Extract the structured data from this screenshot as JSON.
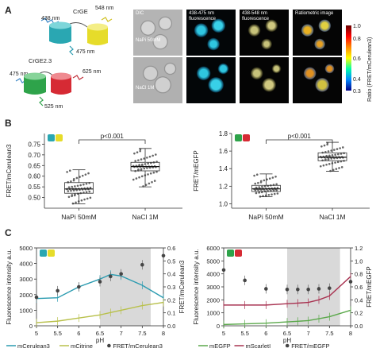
{
  "panels": {
    "a": "A",
    "b": "B",
    "c": "C"
  },
  "sensors": {
    "crge": {
      "name": "CrGE",
      "ex": "438 nm",
      "em1": "475 nm",
      "em2": "548 nm"
    },
    "crge23": {
      "name": "CrGE2.3",
      "ex": "475 nm",
      "em1": "525 nm",
      "em2": "625 nm"
    }
  },
  "micro": {
    "col_labels": [
      "DIC",
      "438-475 nm fluorescence",
      "438-548 nm fluorescence",
      "Ratiometric image"
    ],
    "row_labels": [
      "NaPi 50mM",
      "NaCl 1M"
    ]
  },
  "colorbar": {
    "ticks": [
      "1.0",
      "0.8",
      "0.6",
      "0.4",
      "0.3"
    ],
    "label": "Ratio (FRET/mCerulean3)"
  },
  "chart_data": [
    {
      "type": "box",
      "ylabel": "FRET/mCerulean3",
      "categories": [
        "NaPi 50mM",
        "NaCl 1M"
      ],
      "ylim": [
        0.45,
        0.8
      ],
      "yticks": [
        0.5,
        0.55,
        0.6,
        0.65,
        0.7,
        0.75
      ],
      "boxes": [
        {
          "min": 0.47,
          "q1": 0.52,
          "median": 0.54,
          "q3": 0.57,
          "max": 0.63
        },
        {
          "min": 0.55,
          "q1": 0.625,
          "median": 0.645,
          "q3": 0.665,
          "max": 0.73
        }
      ],
      "annotation": "p<0.001"
    },
    {
      "type": "box",
      "ylabel": "FRET/mEGFP",
      "categories": [
        "NaPi 50mM",
        "NaCl 1M"
      ],
      "ylim": [
        0.95,
        1.8
      ],
      "yticks": [
        1.0,
        1.2,
        1.4,
        1.6,
        1.8
      ],
      "boxes": [
        {
          "min": 1.08,
          "q1": 1.14,
          "median": 1.17,
          "q3": 1.21,
          "max": 1.34
        },
        {
          "min": 1.37,
          "q1": 1.49,
          "median": 1.53,
          "q3": 1.58,
          "max": 1.7
        }
      ],
      "annotation": "p<0.001"
    },
    {
      "type": "line",
      "xlabel": "pH",
      "ylabel": "Fluorescence intensity a.u.",
      "y2label": "FRET/mCerulean3",
      "x": [
        5,
        5.5,
        6,
        6.5,
        6.75,
        7,
        7.5,
        8
      ],
      "xlim": [
        5,
        8
      ],
      "xticks": [
        5,
        5.5,
        6,
        6.5,
        7,
        7.5,
        8
      ],
      "ylim": [
        0,
        5000
      ],
      "yticks": [
        0,
        1000,
        2000,
        3000,
        4000,
        5000
      ],
      "y2lim": [
        0,
        0.6
      ],
      "y2ticks": [
        0,
        0.1,
        0.2,
        0.3,
        0.4,
        0.5,
        0.6
      ],
      "shaded_x": [
        6.5,
        7.7
      ],
      "series": [
        {
          "name": "mCerulean3",
          "axis": "left",
          "color": "#2a9bb0",
          "values": [
            1750,
            1800,
            2500,
            3000,
            3300,
            3200,
            2600,
            1800
          ]
        },
        {
          "name": "mCitrine",
          "axis": "left",
          "color": "#b8c04a",
          "values": [
            200,
            300,
            500,
            700,
            850,
            1000,
            1300,
            1500
          ]
        },
        {
          "name": "FRET/mCerulean3",
          "axis": "right",
          "color": "#555555",
          "values": [
            0.22,
            0.27,
            0.3,
            0.34,
            0.38,
            0.4,
            0.47,
            0.54
          ]
        }
      ]
    },
    {
      "type": "line",
      "xlabel": "pH",
      "ylabel": "Fluorescence intensity a.u.",
      "y2label": "FRET/mEGFP",
      "x": [
        5,
        5.5,
        6,
        6.5,
        6.75,
        7,
        7.25,
        7.5,
        8
      ],
      "xlim": [
        5,
        8
      ],
      "xticks": [
        5,
        5.5,
        6,
        6.5,
        7,
        7.5,
        8
      ],
      "ylim": [
        0,
        6000
      ],
      "yticks": [
        0,
        1000,
        2000,
        3000,
        4000,
        5000,
        6000
      ],
      "y2lim": [
        0,
        1.2
      ],
      "y2ticks": [
        0,
        0.2,
        0.4,
        0.6,
        0.8,
        1.0,
        1.2
      ],
      "shaded_x": [
        6.5,
        7.75
      ],
      "series": [
        {
          "name": "mEGFP",
          "axis": "left",
          "color": "#5aa84a",
          "values": [
            100,
            150,
            200,
            300,
            350,
            400,
            550,
            700,
            1200
          ]
        },
        {
          "name": "mScarletI",
          "axis": "left",
          "color": "#a83250",
          "values": [
            1600,
            1600,
            1600,
            1700,
            1750,
            1800,
            2000,
            2300,
            3800
          ]
        },
        {
          "name": "FRET/mEGFP",
          "axis": "right",
          "color": "#555555",
          "values": [
            0.86,
            0.7,
            0.57,
            0.56,
            0.56,
            0.56,
            0.57,
            0.58,
            0.68
          ]
        }
      ]
    }
  ]
}
